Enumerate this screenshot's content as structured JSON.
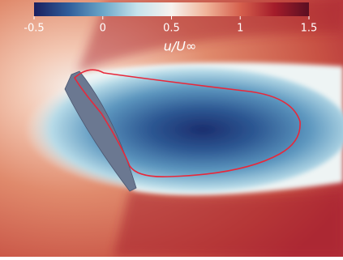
{
  "chart_data": {
    "type": "contour",
    "colorbar_label": "u/U∞",
    "clim": [
      -0.5,
      1.5
    ],
    "cticks": [
      {
        "value": -0.5,
        "label": "-0.5"
      },
      0,
      0.5,
      1,
      1.5
    ],
    "colormap": [
      "#1a1f5e",
      "#2f5d9a",
      "#6aa6c8",
      "#c6e3ec",
      "#f7f2ee",
      "#f0b49a",
      "#d6604d",
      "#a51c2a",
      "#5a0f22"
    ]
  }
}
